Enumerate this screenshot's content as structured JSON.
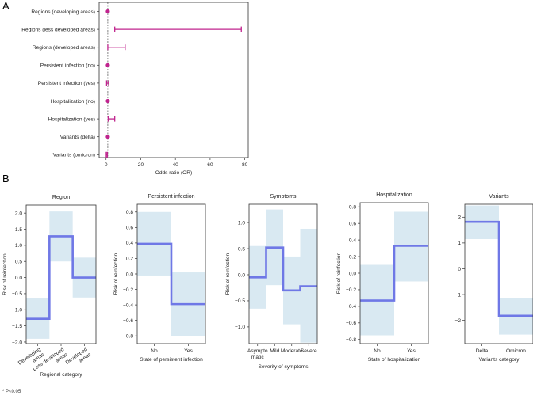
{
  "labels": {
    "panel_a": "A",
    "panel_b": "B",
    "footnote": "* P<0.05"
  },
  "colors": {
    "forest": "#c0248e",
    "line": "#6f78e6",
    "ci": "#d9e9f2",
    "ref": "#333333"
  },
  "chart_data": [
    {
      "type": "forest",
      "xlabel": "Odds ratio (OR)",
      "xlim": [
        -4,
        82
      ],
      "xticks": [
        0,
        20,
        40,
        60,
        80
      ],
      "reference": 1,
      "rows": [
        {
          "label": "Regions (developing areas)",
          "or": 1.0,
          "lower": 1.0,
          "upper": 1.0
        },
        {
          "label": "Regions (less developed areas)",
          "or": 5,
          "lower": 5,
          "upper": 78
        },
        {
          "label": "Regions (developed areas)",
          "or": 3,
          "lower": 1.0,
          "upper": 11
        },
        {
          "label": "Persistent infection (no)",
          "or": 1.0,
          "lower": 1.0,
          "upper": 1.0
        },
        {
          "label": "Persistent infection (yes)",
          "or": 0.9,
          "lower": 0.3,
          "upper": 1.5
        },
        {
          "label": "Hospitalization (no)",
          "or": 1.0,
          "lower": 1.0,
          "upper": 1.0
        },
        {
          "label": "Hospitalization (yes)",
          "or": 2.5,
          "lower": 1.2,
          "upper": 5
        },
        {
          "label": "Variants (delta)",
          "or": 1.0,
          "lower": 1.0,
          "upper": 1.0
        },
        {
          "label": "Variants (omicron)",
          "or": 0.3,
          "lower": 0.1,
          "upper": 0.7
        }
      ]
    },
    {
      "type": "step",
      "title": "Region",
      "xlabel": "Regional category",
      "ylabel": "Risk of reinfection",
      "ylim": [
        -2.05,
        2.25
      ],
      "yticks": [
        -2.0,
        -1.5,
        -1.0,
        -0.5,
        0.0,
        0.5,
        1.0,
        1.5,
        2.0
      ],
      "yticklabels": [
        "−2.0",
        "−1.5",
        "−1.0",
        "−0.5",
        "0.0",
        "0.5",
        "1.0",
        "1.5",
        "2.0"
      ],
      "categories": [
        "Developing areas",
        "Less developed areas",
        "Developed areas"
      ],
      "category_tick_lines": [
        [
          "Developing",
          "areas"
        ],
        [
          "Less developed",
          "areas"
        ],
        [
          "Developed",
          "areas"
        ]
      ],
      "label_rotation": -35,
      "values": [
        -1.28,
        1.28,
        0.0
      ],
      "ci_lower": [
        -1.9,
        0.5,
        -0.62
      ],
      "ci_upper": [
        -0.65,
        2.05,
        0.62
      ]
    },
    {
      "type": "step",
      "title": "Persistent infection",
      "xlabel": "State of persistent infection",
      "ylabel": "Risk of reinfection",
      "ylim": [
        -0.9,
        0.9
      ],
      "yticks": [
        -0.8,
        -0.6,
        -0.4,
        -0.2,
        0.0,
        0.2,
        0.4,
        0.6,
        0.8
      ],
      "yticklabels": [
        "−0.8",
        "−0.6",
        "−0.4",
        "−0.2",
        "0.0",
        "0.2",
        "0.4",
        "0.6",
        "0.8"
      ],
      "categories": [
        "No",
        "Yes"
      ],
      "category_tick_lines": [
        [
          "No"
        ],
        [
          "Yes"
        ]
      ],
      "label_rotation": 0,
      "values": [
        0.39,
        -0.39
      ],
      "ci_lower": [
        -0.02,
        -0.8
      ],
      "ci_upper": [
        0.8,
        0.02
      ]
    },
    {
      "type": "step",
      "title": "Symptoms",
      "xlabel": "Severity of symptoms",
      "ylabel": "Risk of reinfection",
      "ylim": [
        -1.32,
        1.35
      ],
      "yticks": [
        -1.0,
        -0.5,
        0.0,
        0.5,
        1.0
      ],
      "yticklabels": [
        "−1.0",
        "−0.5",
        "0.0",
        "0.5",
        "1.0"
      ],
      "categories": [
        "Asymptomatic",
        "Mild",
        "Moderate",
        "Severe"
      ],
      "category_tick_lines": [
        [
          "Asympto",
          "matic"
        ],
        [
          "Mild"
        ],
        [
          "Moderate"
        ],
        [
          "Severe"
        ]
      ],
      "label_rotation": 0,
      "values": [
        -0.05,
        0.52,
        -0.3,
        -0.22
      ],
      "ci_lower": [
        -0.65,
        -0.2,
        -0.95,
        -1.3
      ],
      "ci_upper": [
        0.55,
        1.25,
        0.35,
        0.88
      ]
    },
    {
      "type": "step",
      "title": "Hospitalization",
      "xlabel": "State of hospitalization",
      "ylabel": "Risk of reinfection",
      "ylim": [
        -0.85,
        0.85
      ],
      "yticks": [
        -0.8,
        -0.6,
        -0.4,
        -0.2,
        0.0,
        0.2,
        0.4,
        0.6,
        0.8
      ],
      "yticklabels": [
        "−0.8",
        "−0.6",
        "−0.4",
        "−0.2",
        "0.0",
        "0.2",
        "0.4",
        "0.6",
        "0.8"
      ],
      "categories": [
        "No",
        "Yes"
      ],
      "category_tick_lines": [
        [
          "No"
        ],
        [
          "Yes"
        ]
      ],
      "label_rotation": 0,
      "values": [
        -0.33,
        0.33
      ],
      "ci_lower": [
        -0.75,
        -0.1
      ],
      "ci_upper": [
        0.1,
        0.74
      ]
    },
    {
      "type": "step",
      "title": "Variants",
      "xlabel": "Variants category",
      "ylabel": "",
      "ylim": [
        -2.9,
        2.5
      ],
      "yticks": [
        -2,
        -1,
        0,
        1,
        2
      ],
      "yticklabels": [
        "−2",
        "−1",
        "0",
        "1",
        "2"
      ],
      "categories": [
        "Delta",
        "Omicron"
      ],
      "category_tick_lines": [
        [
          "Delta"
        ],
        [
          "Omicron"
        ]
      ],
      "label_rotation": 0,
      "values": [
        1.82,
        -1.82
      ],
      "ci_lower": [
        1.15,
        -2.55
      ],
      "ci_upper": [
        2.45,
        -1.15
      ]
    }
  ]
}
